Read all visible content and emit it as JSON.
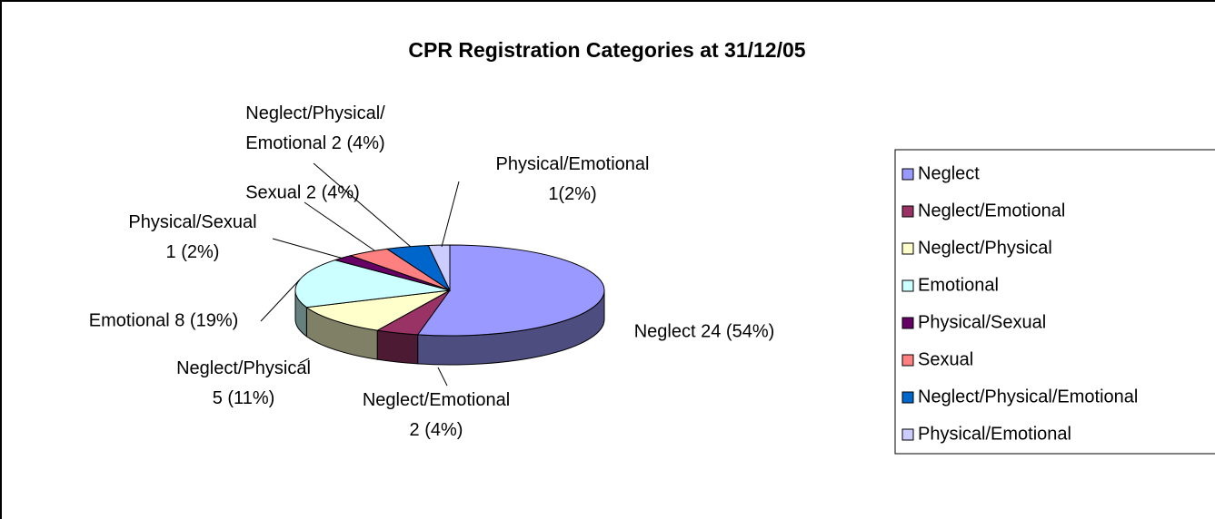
{
  "chart_data": {
    "type": "pie",
    "title": "CPR Registration Categories at 31/12/05",
    "categories": [
      "Neglect",
      "Neglect/Emotional",
      "Neglect/Physical",
      "Emotional",
      "Physical/Sexual",
      "Sexual",
      "Neglect/Physical/Emotional",
      "Physical/Emotional"
    ],
    "values": [
      24,
      2,
      5,
      8,
      1,
      2,
      2,
      1
    ],
    "value_labels": [
      "Neglect 24 (54%)",
      "Neglect/Emotional\n2 (4%)",
      "Neglect/Physical\n5 (11%)",
      "Emotional 8 (19%)",
      "Physical/Sexual\n1 (2%)",
      "Sexual 2 (4%)",
      "Neglect/Physical/\nEmotional 2 (4%)",
      "Physical/Emotional\n1(2%)"
    ],
    "colors": [
      "#9999ff",
      "#993366",
      "#ffffcc",
      "#ccffff",
      "#660066",
      "#ff8080",
      "#0066cc",
      "#ccccff"
    ],
    "legend": "right"
  }
}
